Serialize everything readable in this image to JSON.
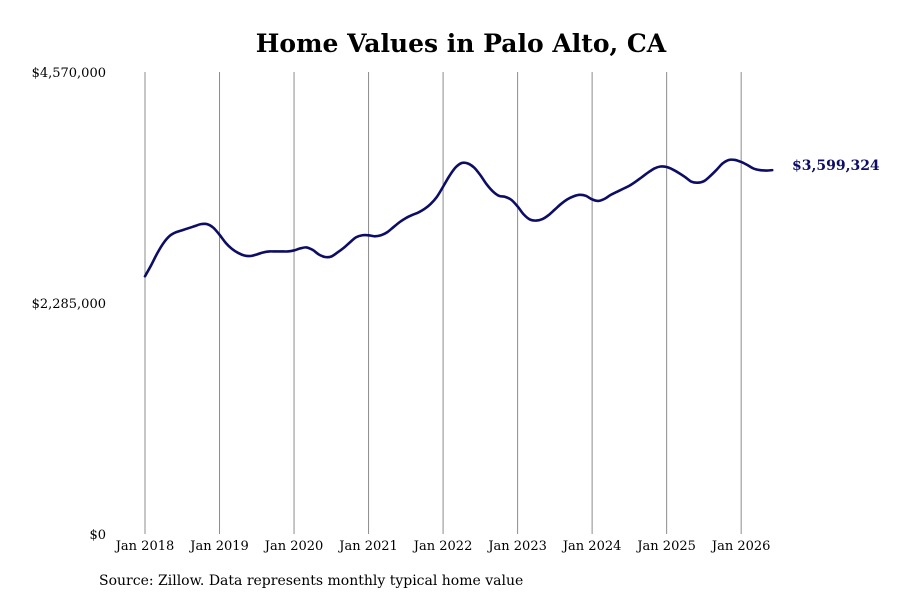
{
  "chart_data": {
    "type": "line",
    "title": "Home Values in Palo Alto, CA",
    "xlabel": "",
    "ylabel": "",
    "ylim": [
      0,
      4570000
    ],
    "yticks": [
      {
        "value": 0,
        "label": "$0"
      },
      {
        "value": 2285000,
        "label": "$2,285,000"
      },
      {
        "value": 4570000,
        "label": "$4,570,000"
      }
    ],
    "xticks": [
      {
        "value": "2018-01",
        "label": "Jan 2018"
      },
      {
        "value": "2019-01",
        "label": "Jan 2019"
      },
      {
        "value": "2020-01",
        "label": "Jan 2020"
      },
      {
        "value": "2021-01",
        "label": "Jan 2021"
      },
      {
        "value": "2022-01",
        "label": "Jan 2022"
      },
      {
        "value": "2023-01",
        "label": "Jan 2023"
      },
      {
        "value": "2024-01",
        "label": "Jan 2024"
      },
      {
        "value": "2025-01",
        "label": "Jan 2025"
      },
      {
        "value": "2026-01",
        "label": "Jan 2026"
      }
    ],
    "grid": {
      "vertical": true,
      "horizontal": false
    },
    "color": "#0d0d66",
    "end_label": "$3,599,324",
    "series": [
      {
        "points": [
          [
            "2018-01",
            2550000
          ],
          [
            "2018-02",
            2660000
          ],
          [
            "2018-03",
            2780000
          ],
          [
            "2018-04",
            2880000
          ],
          [
            "2018-05",
            2950000
          ],
          [
            "2018-06",
            2985000
          ],
          [
            "2018-07",
            3005000
          ],
          [
            "2018-08",
            3025000
          ],
          [
            "2018-09",
            3045000
          ],
          [
            "2018-10",
            3065000
          ],
          [
            "2018-11",
            3065000
          ],
          [
            "2018-12",
            3030000
          ],
          [
            "2019-01",
            2960000
          ],
          [
            "2019-02",
            2880000
          ],
          [
            "2019-03",
            2820000
          ],
          [
            "2019-04",
            2780000
          ],
          [
            "2019-05",
            2755000
          ],
          [
            "2019-06",
            2750000
          ],
          [
            "2019-07",
            2765000
          ],
          [
            "2019-08",
            2785000
          ],
          [
            "2019-09",
            2795000
          ],
          [
            "2019-10",
            2795000
          ],
          [
            "2019-11",
            2795000
          ],
          [
            "2019-12",
            2795000
          ],
          [
            "2020-01",
            2805000
          ],
          [
            "2020-02",
            2825000
          ],
          [
            "2020-03",
            2835000
          ],
          [
            "2020-04",
            2810000
          ],
          [
            "2020-05",
            2765000
          ],
          [
            "2020-06",
            2740000
          ],
          [
            "2020-07",
            2745000
          ],
          [
            "2020-08",
            2785000
          ],
          [
            "2020-09",
            2830000
          ],
          [
            "2020-10",
            2885000
          ],
          [
            "2020-11",
            2935000
          ],
          [
            "2020-12",
            2955000
          ],
          [
            "2021-01",
            2955000
          ],
          [
            "2021-02",
            2945000
          ],
          [
            "2021-03",
            2955000
          ],
          [
            "2021-04",
            2985000
          ],
          [
            "2021-05",
            3035000
          ],
          [
            "2021-06",
            3085000
          ],
          [
            "2021-07",
            3125000
          ],
          [
            "2021-08",
            3155000
          ],
          [
            "2021-09",
            3180000
          ],
          [
            "2021-10",
            3215000
          ],
          [
            "2021-11",
            3265000
          ],
          [
            "2021-12",
            3335000
          ],
          [
            "2022-01",
            3435000
          ],
          [
            "2022-02",
            3540000
          ],
          [
            "2022-03",
            3625000
          ],
          [
            "2022-04",
            3670000
          ],
          [
            "2022-05",
            3665000
          ],
          [
            "2022-06",
            3625000
          ],
          [
            "2022-07",
            3550000
          ],
          [
            "2022-08",
            3460000
          ],
          [
            "2022-09",
            3390000
          ],
          [
            "2022-10",
            3345000
          ],
          [
            "2022-11",
            3335000
          ],
          [
            "2022-12",
            3305000
          ],
          [
            "2023-01",
            3240000
          ],
          [
            "2023-02",
            3160000
          ],
          [
            "2023-03",
            3110000
          ],
          [
            "2023-04",
            3100000
          ],
          [
            "2023-05",
            3115000
          ],
          [
            "2023-06",
            3155000
          ],
          [
            "2023-07",
            3210000
          ],
          [
            "2023-08",
            3265000
          ],
          [
            "2023-09",
            3310000
          ],
          [
            "2023-10",
            3340000
          ],
          [
            "2023-11",
            3355000
          ],
          [
            "2023-12",
            3345000
          ],
          [
            "2024-01",
            3310000
          ],
          [
            "2024-02",
            3295000
          ],
          [
            "2024-03",
            3315000
          ],
          [
            "2024-04",
            3355000
          ],
          [
            "2024-05",
            3385000
          ],
          [
            "2024-06",
            3415000
          ],
          [
            "2024-07",
            3445000
          ],
          [
            "2024-08",
            3485000
          ],
          [
            "2024-09",
            3530000
          ],
          [
            "2024-10",
            3575000
          ],
          [
            "2024-11",
            3615000
          ],
          [
            "2024-12",
            3635000
          ],
          [
            "2025-01",
            3630000
          ],
          [
            "2025-02",
            3605000
          ],
          [
            "2025-03",
            3570000
          ],
          [
            "2025-04",
            3530000
          ],
          [
            "2025-05",
            3485000
          ],
          [
            "2025-06",
            3475000
          ],
          [
            "2025-07",
            3490000
          ],
          [
            "2025-08",
            3540000
          ],
          [
            "2025-09",
            3600000
          ],
          [
            "2025-10",
            3665000
          ],
          [
            "2025-11",
            3700000
          ],
          [
            "2025-12",
            3700000
          ],
          [
            "2026-01",
            3680000
          ],
          [
            "2026-02",
            3650000
          ],
          [
            "2026-03",
            3615000
          ],
          [
            "2026-04",
            3600000
          ],
          [
            "2026-05",
            3595000
          ],
          [
            "2026-06",
            3599324
          ]
        ]
      }
    ]
  },
  "source_text": "Source: Zillow. Data represents monthly typical home value"
}
